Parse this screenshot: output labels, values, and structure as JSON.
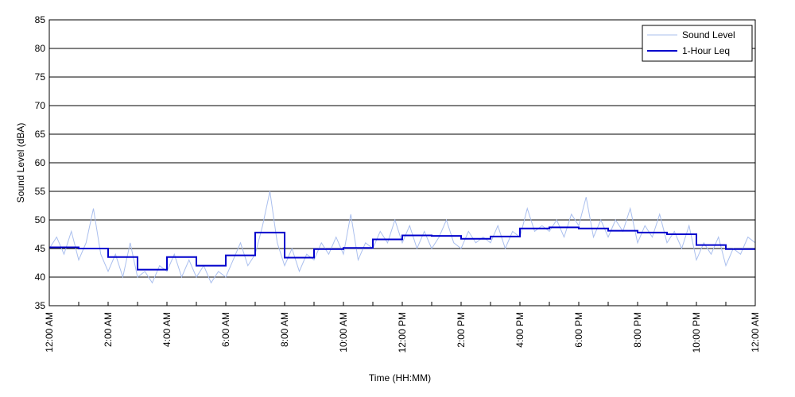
{
  "chart_data": {
    "type": "line",
    "xlabel": "Time (HH:MM)",
    "ylabel": "Sound Level (dBA)",
    "xlim": [
      0,
      24
    ],
    "ylim": [
      35,
      85
    ],
    "yticks": [
      35,
      40,
      45,
      50,
      55,
      60,
      65,
      70,
      75,
      80,
      85
    ],
    "xticks": [
      {
        "value": 0,
        "label": "12:00 AM"
      },
      {
        "value": 2,
        "label": "2:00 AM"
      },
      {
        "value": 4,
        "label": "4:00 AM"
      },
      {
        "value": 6,
        "label": "6:00 AM"
      },
      {
        "value": 8,
        "label": "8:00 AM"
      },
      {
        "value": 10,
        "label": "10:00 AM"
      },
      {
        "value": 12,
        "label": "12:00 PM"
      },
      {
        "value": 14,
        "label": "2:00 PM"
      },
      {
        "value": 16,
        "label": "4:00 PM"
      },
      {
        "value": 18,
        "label": "6:00 PM"
      },
      {
        "value": 20,
        "label": "8:00 PM"
      },
      {
        "value": 22,
        "label": "10:00 PM"
      },
      {
        "value": 24,
        "label": "12:00 AM"
      }
    ],
    "grid": true,
    "legend": "upper right",
    "series": [
      {
        "name": "Sound Level",
        "color": "#aabfee",
        "style": "line",
        "x": [
          0,
          0.25,
          0.5,
          0.75,
          1,
          1.25,
          1.5,
          1.75,
          2,
          2.25,
          2.5,
          2.75,
          3,
          3.25,
          3.5,
          3.75,
          4,
          4.25,
          4.5,
          4.75,
          5,
          5.25,
          5.5,
          5.75,
          6,
          6.25,
          6.5,
          6.75,
          7,
          7.25,
          7.5,
          7.75,
          8,
          8.25,
          8.5,
          8.75,
          9,
          9.25,
          9.5,
          9.75,
          10,
          10.25,
          10.5,
          10.75,
          11,
          11.25,
          11.5,
          11.75,
          12,
          12.25,
          12.5,
          12.75,
          13,
          13.25,
          13.5,
          13.75,
          14,
          14.25,
          14.5,
          14.75,
          15,
          15.25,
          15.5,
          15.75,
          16,
          16.25,
          16.5,
          16.75,
          17,
          17.25,
          17.5,
          17.75,
          18,
          18.25,
          18.5,
          18.75,
          19,
          19.25,
          19.5,
          19.75,
          20,
          20.25,
          20.5,
          20.75,
          21,
          21.25,
          21.5,
          21.75,
          22,
          22.25,
          22.5,
          22.75,
          23,
          23.25,
          23.5,
          23.75,
          24
        ],
        "values": [
          45,
          47,
          44,
          48,
          43,
          46,
          52,
          44,
          41,
          44,
          40,
          46,
          40,
          41,
          39,
          42,
          41,
          44,
          40,
          43,
          40,
          42,
          39,
          41,
          40,
          43,
          46,
          42,
          44,
          49,
          55,
          46,
          42,
          45,
          41,
          44,
          43,
          46,
          44,
          47,
          44,
          51,
          43,
          46,
          45,
          48,
          46,
          50,
          46,
          49,
          45,
          48,
          45,
          47,
          50,
          46,
          45,
          48,
          46,
          47,
          46,
          49,
          45,
          48,
          47,
          52,
          48,
          49,
          48,
          50,
          47,
          51,
          49,
          54,
          47,
          50,
          47,
          50,
          48,
          52,
          46,
          49,
          47,
          51,
          46,
          48,
          45,
          49,
          43,
          46,
          44,
          47,
          42,
          45,
          44,
          47,
          46
        ]
      },
      {
        "name": "1-Hour Leq",
        "color": "#0000cc",
        "style": "step",
        "x": [
          0,
          1,
          2,
          3,
          4,
          5,
          6,
          7,
          8,
          9,
          10,
          11,
          12,
          13,
          14,
          15,
          16,
          17,
          18,
          19,
          20,
          21,
          22,
          23
        ],
        "values": [
          45.2,
          45.0,
          43.5,
          41.3,
          43.5,
          42.0,
          43.8,
          47.8,
          43.4,
          44.9,
          45.1,
          46.6,
          47.3,
          47.2,
          46.7,
          47.1,
          48.5,
          48.7,
          48.5,
          48.1,
          47.8,
          47.5,
          45.6,
          44.9
        ]
      }
    ]
  }
}
